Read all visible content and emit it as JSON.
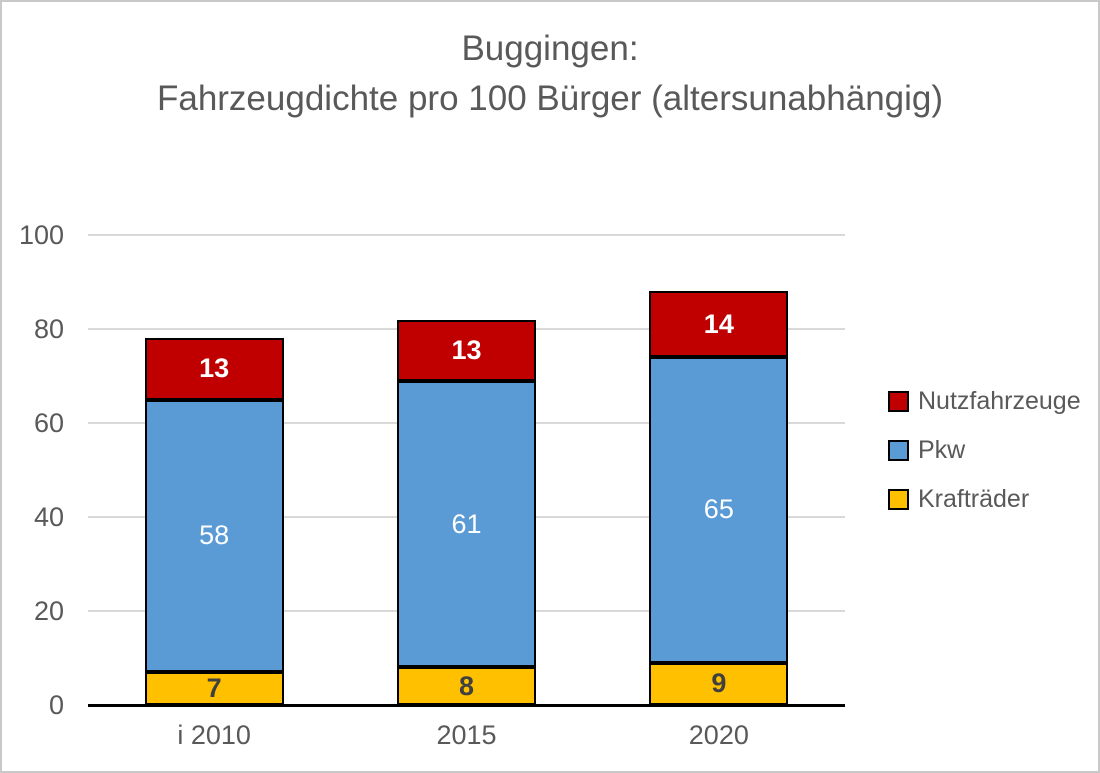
{
  "title": {
    "line1": "Buggingen:",
    "line2": "Fahrzeugdichte pro 100 Bürger (altersunabhängig)",
    "color": "#595959"
  },
  "chart_data": {
    "type": "bar",
    "stacked": true,
    "title": "Buggingen: Fahrzeugdichte pro 100 Bürger (altersunabhängig)",
    "categories": [
      "i 2010",
      "2015",
      "2020"
    ],
    "series": [
      {
        "name": "Krafträder",
        "color": "#FFC000",
        "values": [
          7,
          8,
          9
        ],
        "label_color": "#404040",
        "label_bold": true
      },
      {
        "name": "Pkw",
        "color": "#5B9BD5",
        "values": [
          58,
          61,
          65
        ],
        "label_color": "#ffffff",
        "label_bold": false
      },
      {
        "name": "Nutzfahrzeuge",
        "color": "#C00000",
        "values": [
          13,
          13,
          14
        ],
        "label_color": "#ffffff",
        "label_bold": true
      }
    ],
    "totals": [
      78,
      82,
      88
    ],
    "ylim": [
      0,
      100
    ],
    "yticks": [
      "0",
      "20",
      "40",
      "60",
      "80",
      "100"
    ],
    "grid": true,
    "gridline_color": "#d9d9d9",
    "axis_color": "#000000",
    "tick_label_color": "#595959",
    "bar_border_color": "#000000",
    "legend": {
      "position": "right",
      "text_color": "#595959",
      "items": [
        {
          "label": "Nutzfahrzeuge",
          "color": "#C00000"
        },
        {
          "label": "Pkw",
          "color": "#5B9BD5"
        },
        {
          "label": "Krafträder",
          "color": "#FFC000"
        }
      ]
    }
  }
}
